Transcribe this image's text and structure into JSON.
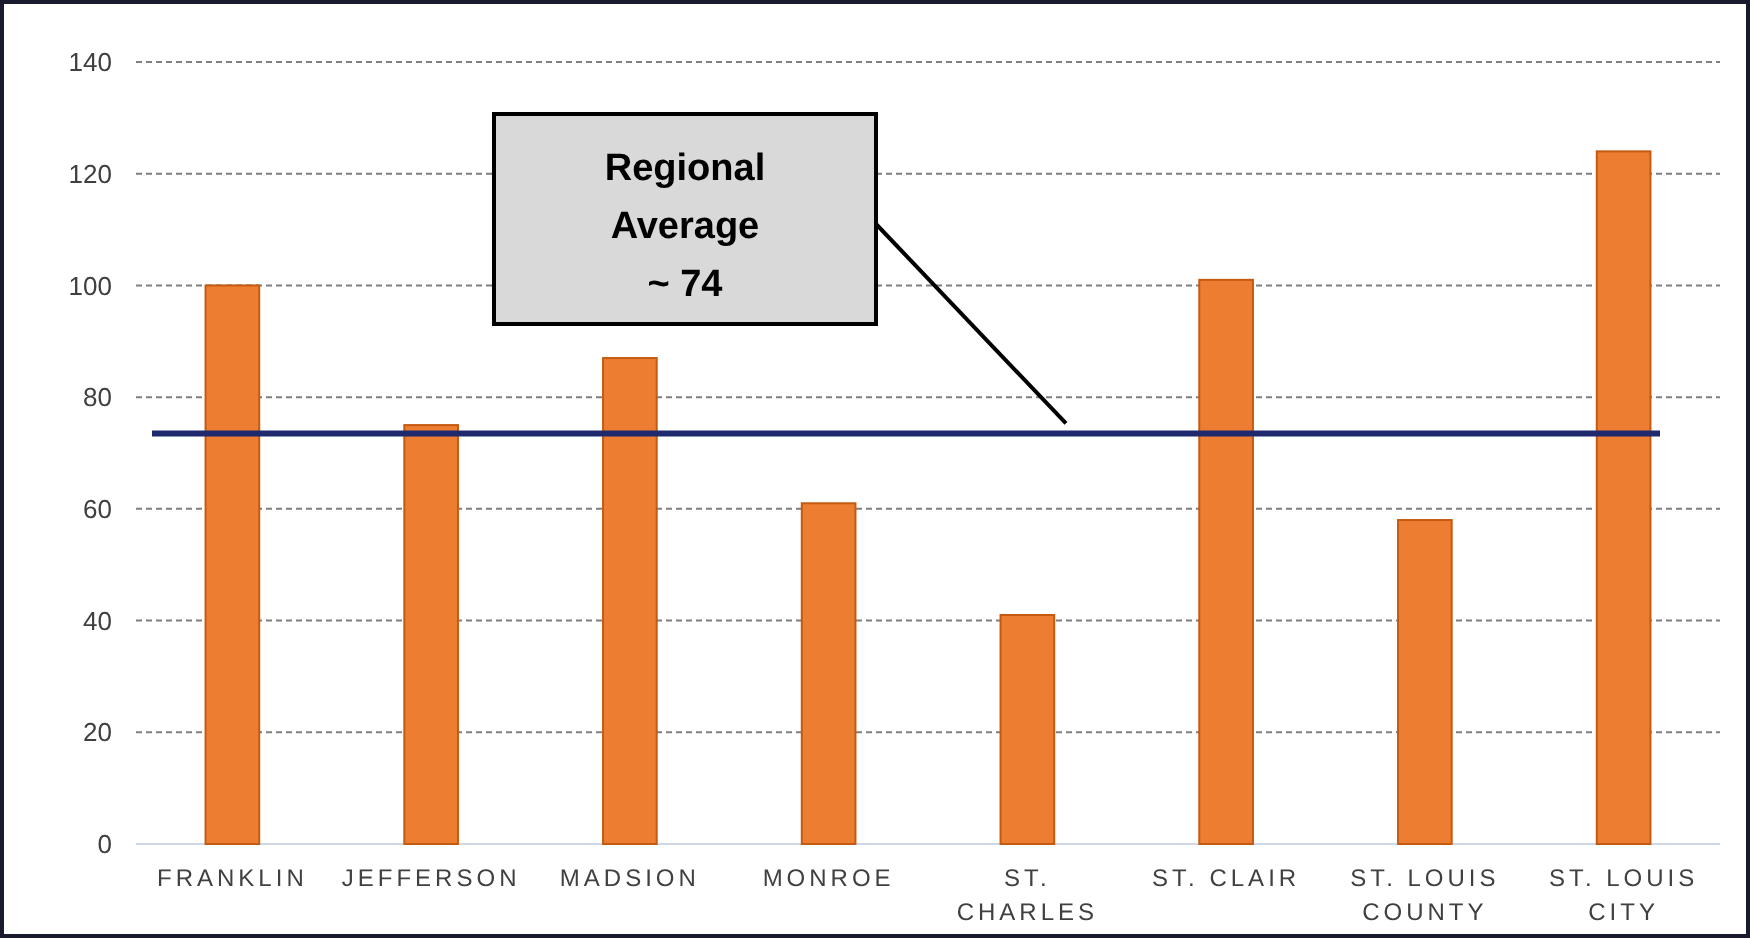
{
  "chart_data": {
    "type": "bar",
    "categories": [
      "FRANKLIN",
      "JEFFERSON",
      "MADSION",
      "MONROE",
      "ST. CHARLES",
      "ST. CLAIR",
      "ST. LOUIS COUNTY",
      "ST. LOUIS CITY"
    ],
    "values": [
      100,
      75,
      87,
      61,
      41,
      101,
      58,
      124
    ],
    "color": "#ed7d31",
    "ylim": [
      0,
      140
    ],
    "yticks": [
      0,
      20,
      40,
      60,
      80,
      100,
      120,
      140
    ],
    "grid": "y",
    "ref_lines": [
      {
        "axis": "y",
        "value": 73.5,
        "color": "#1f2a6e"
      }
    ],
    "annotations": [
      "Regional Average ~ 74"
    ]
  }
}
